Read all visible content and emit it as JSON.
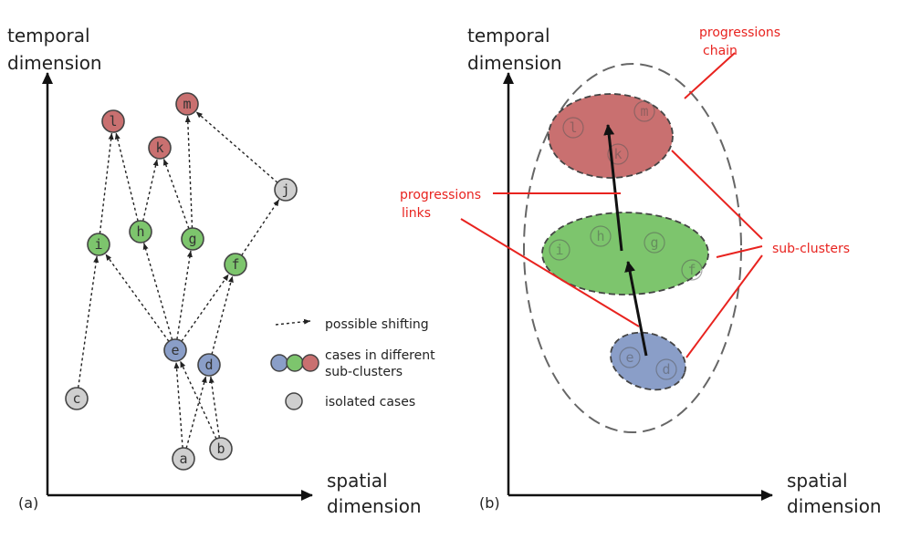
{
  "panel_a": {
    "tag": "(a)",
    "y_axis_label": [
      "temporal",
      "dimension"
    ],
    "x_axis_label": [
      "spatial",
      "dimension"
    ],
    "nodes": [
      {
        "id": "l",
        "label": "l",
        "color": "red"
      },
      {
        "id": "m",
        "label": "m",
        "color": "red"
      },
      {
        "id": "k",
        "label": "k",
        "color": "red"
      },
      {
        "id": "j",
        "label": "j",
        "color": "gray"
      },
      {
        "id": "i",
        "label": "i",
        "color": "green"
      },
      {
        "id": "h",
        "label": "h",
        "color": "green"
      },
      {
        "id": "g",
        "label": "g",
        "color": "green"
      },
      {
        "id": "f",
        "label": "f",
        "color": "green"
      },
      {
        "id": "e",
        "label": "e",
        "color": "blue"
      },
      {
        "id": "d",
        "label": "d",
        "color": "blue"
      },
      {
        "id": "c",
        "label": "c",
        "color": "gray"
      },
      {
        "id": "a",
        "label": "a",
        "color": "gray"
      },
      {
        "id": "b",
        "label": "b",
        "color": "gray"
      }
    ],
    "edges": [
      [
        "c",
        "i"
      ],
      [
        "i",
        "l"
      ],
      [
        "h",
        "l"
      ],
      [
        "h",
        "k"
      ],
      [
        "g",
        "k"
      ],
      [
        "g",
        "m"
      ],
      [
        "j",
        "m"
      ],
      [
        "f",
        "j"
      ],
      [
        "e",
        "i"
      ],
      [
        "e",
        "h"
      ],
      [
        "e",
        "g"
      ],
      [
        "e",
        "f"
      ],
      [
        "d",
        "f"
      ],
      [
        "a",
        "e"
      ],
      [
        "a",
        "d"
      ],
      [
        "b",
        "e"
      ],
      [
        "b",
        "d"
      ]
    ],
    "legend": {
      "shifting": "possible shifting",
      "subclusters_line1": "cases in different",
      "subclusters_line2": "sub-clusters",
      "isolated": "isolated cases"
    }
  },
  "panel_b": {
    "tag": "(b)",
    "y_axis_label": [
      "temporal",
      "dimension"
    ],
    "x_axis_label": [
      "spatial",
      "dimension"
    ],
    "chain_label": [
      "progressions",
      "chain"
    ],
    "links_label": [
      "progressions",
      "links"
    ],
    "subclusters_label": "sub-clusters",
    "clusters": [
      {
        "color": "red",
        "members": [
          "l",
          "m",
          "k"
        ]
      },
      {
        "color": "green",
        "members": [
          "i",
          "h",
          "g",
          "f"
        ]
      },
      {
        "color": "blue",
        "members": [
          "e",
          "d"
        ]
      }
    ]
  },
  "colors": {
    "red": "#c97070",
    "green": "#7dc56d",
    "blue": "#8a9ec8",
    "gray": "#cfcfcf",
    "annotation": "#e8231f"
  }
}
